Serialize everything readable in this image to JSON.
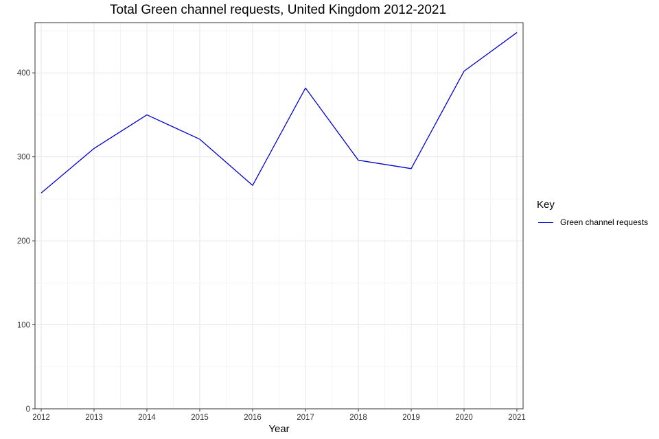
{
  "chart_data": {
    "type": "line",
    "title": "Total Green channel requests, United Kingdom 2012-2021",
    "xlabel": "Year",
    "ylabel": "",
    "x": [
      2012,
      2013,
      2014,
      2015,
      2016,
      2017,
      2018,
      2019,
      2020,
      2021
    ],
    "x_tick_labels": [
      "2012",
      "2013",
      "2014",
      "2015",
      "2016",
      "2017",
      "2018",
      "2019",
      "2020",
      "2021"
    ],
    "y_ticks": [
      0,
      100,
      200,
      300,
      400
    ],
    "y_tick_labels": [
      "0",
      "100",
      "200",
      "300",
      "400"
    ],
    "ylim": [
      0,
      450
    ],
    "xlim": [
      2012,
      2021
    ],
    "grid": true,
    "legend": {
      "title": "Key",
      "placement": "right"
    },
    "series": [
      {
        "name": "Green channel requests",
        "color": "#0000cc",
        "values": [
          257,
          310,
          350,
          321,
          266,
          382,
          296,
          286,
          402,
          448
        ]
      }
    ]
  }
}
